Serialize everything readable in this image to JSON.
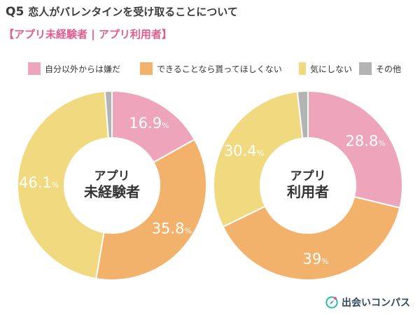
{
  "header": {
    "q_label": "Q5",
    "question": "恋人がバレンタインを受け取ることについて",
    "subtitle": "【アプリ未経験者 | アプリ利用者】"
  },
  "legend": [
    {
      "label": "自分以外からは嫌だ",
      "color": "#eea5bb"
    },
    {
      "label": "できることなら貰ってほしくない",
      "color": "#f2b26c"
    },
    {
      "label": "気にしない",
      "color": "#f1d97f"
    },
    {
      "label": "その他",
      "color": "#b3b3b3"
    }
  ],
  "percent_suffix": "%",
  "brand": {
    "name": "出会いコンパス",
    "icon": "compass-icon"
  },
  "chart_data": [
    {
      "type": "pie",
      "center_label": [
        "アプリ",
        "未経験者"
      ],
      "categories": [
        "自分以外からは嫌だ",
        "できることなら貰ってほしくない",
        "気にしない",
        "その他"
      ],
      "values": [
        16.9,
        35.8,
        46.1,
        1.2
      ],
      "value_labels": [
        "16.9",
        "35.8",
        "46.1",
        ""
      ],
      "colors": [
        "#eea5bb",
        "#f2b26c",
        "#f1d97f",
        "#b3b3b3"
      ]
    },
    {
      "type": "pie",
      "center_label": [
        "アプリ",
        "利用者"
      ],
      "categories": [
        "自分以外からは嫌だ",
        "できることなら貰ってほしくない",
        "気にしない",
        "その他"
      ],
      "values": [
        28.8,
        39.0,
        30.4,
        1.8
      ],
      "value_labels": [
        "28.8",
        "39",
        "30.4",
        ""
      ],
      "colors": [
        "#eea5bb",
        "#f2b26c",
        "#f1d97f",
        "#b3b3b3"
      ]
    }
  ]
}
